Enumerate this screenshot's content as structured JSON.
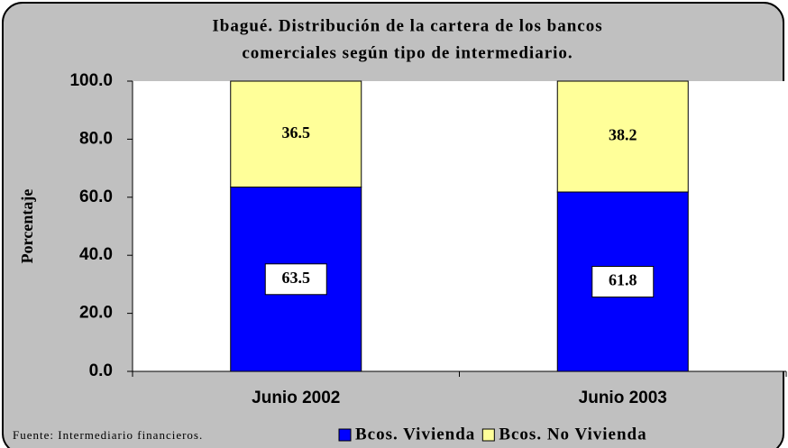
{
  "chart_data": {
    "type": "stacked_bar",
    "title": [
      "Ibagué. Distribución de la cartera de los bancos",
      "comerciales según tipo de intermediario."
    ],
    "y_label": "Porcentaje",
    "categories": [
      "Junio 2002",
      "Junio 2003"
    ],
    "series": [
      {
        "name": "Bcos. Vivienda",
        "color": "#0000ff",
        "values": [
          63.5,
          61.8
        ]
      },
      {
        "name": "Bcos. No Vivienda",
        "color": "#ffff99",
        "values": [
          36.5,
          38.2
        ]
      }
    ],
    "ylim": [
      0,
      100
    ],
    "yticks": [
      {
        "value": 0,
        "label": "0.0"
      },
      {
        "value": 20,
        "label": "20.0"
      },
      {
        "value": 40,
        "label": "40.0"
      },
      {
        "value": 60,
        "label": "60.0"
      },
      {
        "value": 80,
        "label": "80.0"
      },
      {
        "value": 100,
        "label": "100.0"
      }
    ],
    "source": "Fuente: Intermediario financieros."
  }
}
